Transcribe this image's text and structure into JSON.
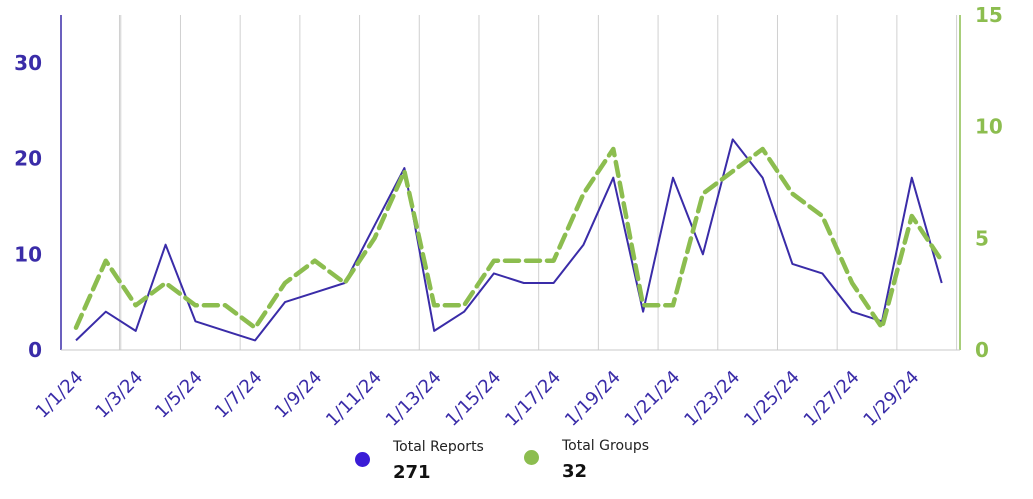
{
  "chart_data": {
    "type": "line",
    "title": "",
    "xlabel": "",
    "ylabel": "",
    "grid": "vertical",
    "x": [
      "1/1/24",
      "1/2/24",
      "1/3/24",
      "1/4/24",
      "1/5/24",
      "1/6/24",
      "1/7/24",
      "1/8/24",
      "1/9/24",
      "1/10/24",
      "1/11/24",
      "1/12/24",
      "1/13/24",
      "1/14/24",
      "1/15/24",
      "1/16/24",
      "1/17/24",
      "1/18/24",
      "1/19/24",
      "1/20/24",
      "1/21/24",
      "1/22/24",
      "1/23/24",
      "1/24/24",
      "1/25/24",
      "1/26/24",
      "1/27/24",
      "1/28/24",
      "1/29/24",
      "1/30/24"
    ],
    "x_tick_labels": [
      "1/1/24",
      "1/3/24",
      "1/5/24",
      "1/7/24",
      "1/9/24",
      "1/11/24",
      "1/13/24",
      "1/15/24",
      "1/17/24",
      "1/19/24",
      "1/21/24",
      "1/23/24",
      "1/25/24",
      "1/27/24",
      "1/29/24"
    ],
    "y_left": {
      "ylim": [
        0,
        35
      ],
      "ticks": [
        "0",
        "10",
        "20",
        "30"
      ],
      "tick_values": [
        0,
        10,
        20,
        30
      ],
      "color": "#3a2ca8"
    },
    "y_right": {
      "ylim": [
        0,
        15
      ],
      "ticks": [
        "0",
        "5",
        "10",
        "15"
      ],
      "tick_values": [
        0,
        5,
        10,
        15
      ],
      "color": "#8cbd4f"
    },
    "series": [
      {
        "name": "Total Reports",
        "axis": "left",
        "style": "solid",
        "color": "#3a2ca8",
        "values": [
          1,
          4,
          2,
          11,
          3,
          2,
          1,
          5,
          6,
          7,
          13,
          19,
          2,
          4,
          8,
          7,
          7,
          11,
          18,
          4,
          18,
          10,
          22,
          18,
          9,
          8,
          4,
          3,
          18,
          7
        ]
      },
      {
        "name": "Total Groups",
        "axis": "right",
        "style": "dashed",
        "color": "#8cbd4f",
        "values": [
          1,
          4,
          2,
          3,
          2,
          2,
          1,
          3,
          4,
          3,
          5,
          8,
          2,
          2,
          4,
          4,
          4,
          7,
          9,
          2,
          2,
          7,
          8,
          9,
          7,
          6,
          3,
          1,
          6,
          4
        ]
      }
    ]
  },
  "legend": {
    "items": [
      {
        "label": "Total Reports",
        "value": "271",
        "color": "#3a1cd6"
      },
      {
        "label": "Total Groups",
        "value": "32",
        "color": "#8cbd4f"
      }
    ]
  }
}
